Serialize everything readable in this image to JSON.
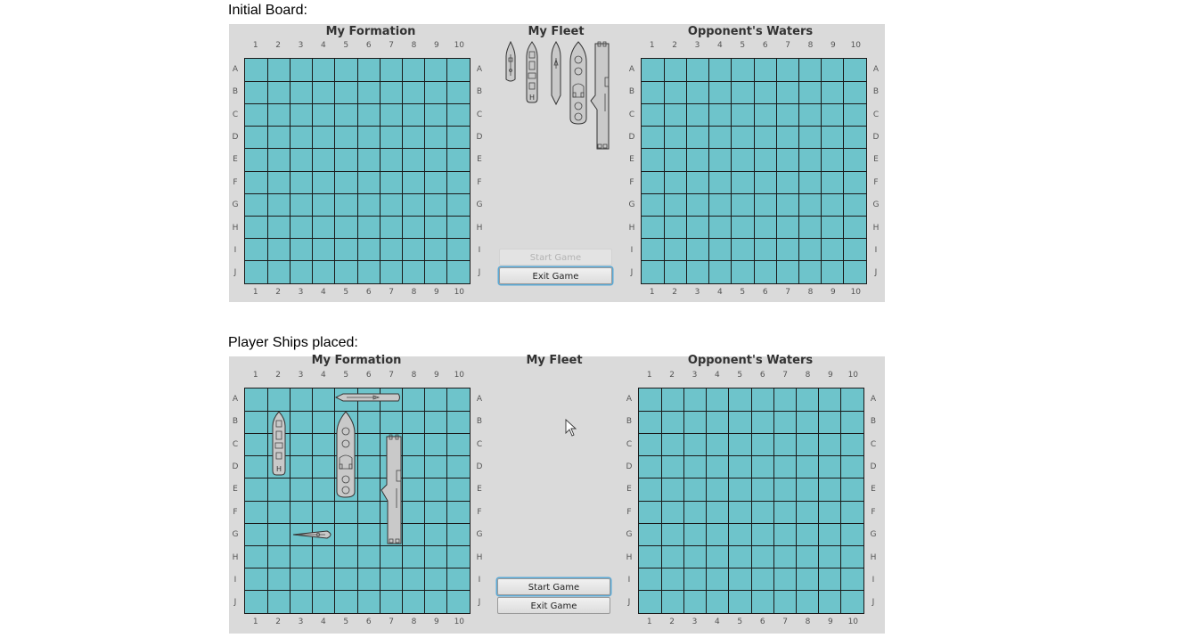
{
  "captions": {
    "initial": "Initial Board:",
    "placed": "Player Ships placed:"
  },
  "boards": [
    {
      "titles": {
        "formation": "My Formation",
        "fleet": "My Fleet",
        "opponent": "Opponent's Waters"
      },
      "buttons": {
        "start": "Start Game",
        "exit": "Exit Game",
        "start_enabled": false,
        "focused": "exit"
      },
      "ships_in_fleet": [
        "patrol-boat",
        "submarine",
        "destroyer",
        "battleship",
        "aircraft-carrier"
      ]
    },
    {
      "titles": {
        "formation": "My Formation",
        "fleet": "My Fleet",
        "opponent": "Opponent's Waters"
      },
      "buttons": {
        "start": "Start Game",
        "exit": "Exit Game",
        "start_enabled": true,
        "focused": "start"
      },
      "ships_in_fleet": []
    }
  ],
  "grid": {
    "columns": [
      "1",
      "2",
      "3",
      "4",
      "5",
      "6",
      "7",
      "8",
      "9",
      "10"
    ],
    "rows": [
      "A",
      "B",
      "C",
      "D",
      "E",
      "F",
      "G",
      "H",
      "I",
      "J"
    ]
  },
  "colors": {
    "water": "#6ec4cb",
    "panel": "#dadada",
    "gridline": "#1a1a1a",
    "ship": "#c9c9c9"
  },
  "cursor_icon": "arrow-cursor-icon"
}
